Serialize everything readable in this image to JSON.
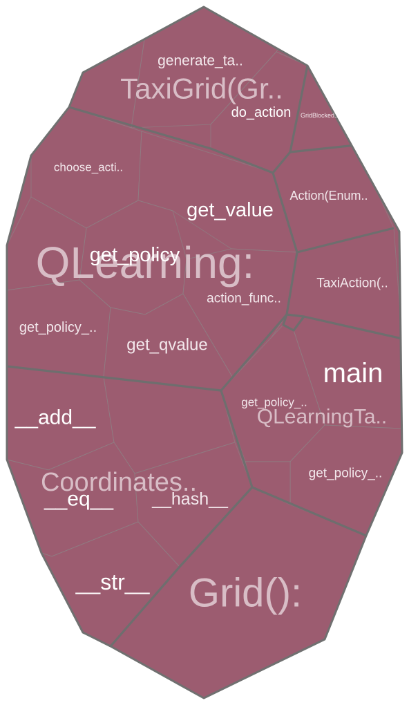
{
  "groups": {
    "taxigrid": "TaxiGrid(Gr..",
    "qlearning": "QLearning:",
    "coordinates": "Coordinates..",
    "grid": "Grid():",
    "qlearningta": "QLearningTa.."
  },
  "leaves": {
    "generate_ta": "generate_ta..",
    "do_action": "do_action",
    "grid_blocked": "GridBlocked..",
    "choose_acti": "choose_acti..",
    "get_value": "get_value",
    "get_policy": "get_policy",
    "action_func": "action_func..",
    "get_policy_left": "get_policy_..",
    "get_qvalue": "get_qvalue",
    "action_enum": "Action(Enum..",
    "taxi_action": "TaxiAction(..",
    "main": "main",
    "get_policy_mid": "get_policy_..",
    "get_policy_right": "get_policy_..",
    "add": "__add__",
    "eq": "__eq__",
    "hash": "__hash__",
    "str": "__str__"
  }
}
